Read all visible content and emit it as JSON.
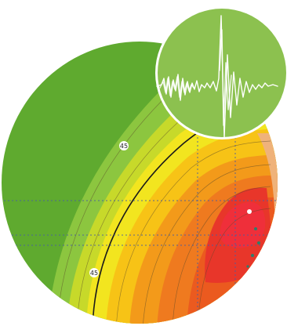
{
  "map": {
    "contour_labels": [
      "45",
      "45"
    ],
    "colors": {
      "green_dark": "#5faa2f",
      "green": "#8cc63f",
      "yellow_green": "#c7d92a",
      "yellow": "#f2e51f",
      "orange_yellow": "#f7c316",
      "orange": "#f39a1a",
      "orange_red": "#ef7a1f",
      "red_orange": "#eb5a1f",
      "red": "#e8362a",
      "red_hot": "#ef2f3a",
      "edge_tan": "#efb27a",
      "gridline": "#4a5ea0"
    }
  },
  "badge": {
    "icon": "seismogram-icon",
    "background": "#8cc14f",
    "trace_color": "#ffffff"
  }
}
